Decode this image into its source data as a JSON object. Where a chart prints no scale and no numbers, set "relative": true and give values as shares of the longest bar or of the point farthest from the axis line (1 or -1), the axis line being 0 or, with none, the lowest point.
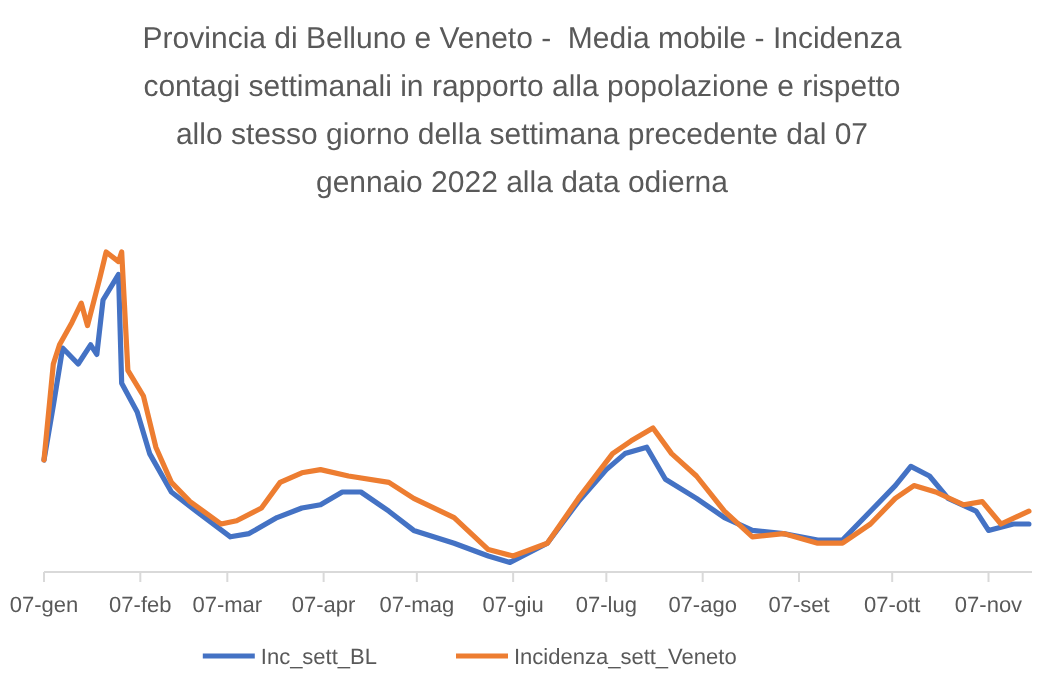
{
  "chart_data": {
    "type": "line",
    "title": "Provincia di Belluno e Veneto -  Media mobile - Incidenza contagi settimanali in rapporto alla popolazione e rispetto allo stesso giorno della settimana precedente dal 07 gennaio 2022 alla data odierna",
    "relative": true,
    "xlim": [
      "2022-01-07",
      "2022-11-21"
    ],
    "xticks": [
      {
        "value": "2022-01-07",
        "label": "07-gen"
      },
      {
        "value": "2022-02-07",
        "label": "07-feb"
      },
      {
        "value": "2022-03-07",
        "label": "07-mar"
      },
      {
        "value": "2022-04-07",
        "label": "07-apr"
      },
      {
        "value": "2022-05-07",
        "label": "07-mag"
      },
      {
        "value": "2022-06-07",
        "label": "07-giu"
      },
      {
        "value": "2022-07-07",
        "label": "07-lug"
      },
      {
        "value": "2022-08-07",
        "label": "07-ago"
      },
      {
        "value": "2022-09-07",
        "label": "07-set"
      },
      {
        "value": "2022-10-07",
        "label": "07-ott"
      },
      {
        "value": "2022-11-07",
        "label": "07-nov"
      }
    ],
    "legend": "bottom",
    "marker": "none",
    "line_style": "solid",
    "series": [
      {
        "name": "Inc_sett_BL",
        "color": "#4472c4",
        "x": [
          "2022-01-07",
          "2022-01-10",
          "2022-01-13",
          "2022-01-18",
          "2022-01-22",
          "2022-01-24",
          "2022-01-26",
          "2022-01-31",
          "2022-02-01",
          "2022-02-06",
          "2022-02-10",
          "2022-02-17",
          "2022-02-25",
          "2022-03-08",
          "2022-03-14",
          "2022-03-23",
          "2022-03-31",
          "2022-04-06",
          "2022-04-13",
          "2022-04-19",
          "2022-04-28",
          "2022-05-06",
          "2022-05-19",
          "2022-05-30",
          "2022-06-06",
          "2022-06-18",
          "2022-06-28",
          "2022-07-07",
          "2022-07-13",
          "2022-07-20",
          "2022-07-26",
          "2022-08-05",
          "2022-08-14",
          "2022-08-23",
          "2022-09-02",
          "2022-09-13",
          "2022-09-21",
          "2022-09-30",
          "2022-10-08",
          "2022-10-13",
          "2022-10-19",
          "2022-10-25",
          "2022-11-03",
          "2022-11-07",
          "2022-11-15",
          "2022-11-20"
        ],
        "values": [
          0.35,
          0.52,
          0.7,
          0.65,
          0.71,
          0.68,
          0.85,
          0.93,
          0.59,
          0.5,
          0.37,
          0.25,
          0.19,
          0.11,
          0.12,
          0.17,
          0.2,
          0.21,
          0.25,
          0.25,
          0.19,
          0.13,
          0.09,
          0.05,
          0.03,
          0.09,
          0.22,
          0.32,
          0.37,
          0.39,
          0.29,
          0.23,
          0.17,
          0.13,
          0.12,
          0.1,
          0.1,
          0.19,
          0.27,
          0.33,
          0.3,
          0.23,
          0.19,
          0.13,
          0.15,
          0.15
        ]
      },
      {
        "name": "Incidenza_sett_Veneto",
        "color": "#ed7d31",
        "x": [
          "2022-01-07",
          "2022-01-10",
          "2022-01-12",
          "2022-01-16",
          "2022-01-19",
          "2022-01-21",
          "2022-01-25",
          "2022-01-27",
          "2022-01-31",
          "2022-02-01",
          "2022-02-03",
          "2022-02-08",
          "2022-02-12",
          "2022-02-17",
          "2022-02-23",
          "2022-03-05",
          "2022-03-10",
          "2022-03-18",
          "2022-03-24",
          "2022-03-31",
          "2022-04-06",
          "2022-04-15",
          "2022-04-28",
          "2022-05-06",
          "2022-05-19",
          "2022-05-30",
          "2022-06-07",
          "2022-06-18",
          "2022-06-28",
          "2022-07-09",
          "2022-07-15",
          "2022-07-22",
          "2022-07-28",
          "2022-08-05",
          "2022-08-14",
          "2022-08-23",
          "2022-09-02",
          "2022-09-13",
          "2022-09-21",
          "2022-09-30",
          "2022-10-08",
          "2022-10-14",
          "2022-10-21",
          "2022-10-30",
          "2022-11-05",
          "2022-11-11",
          "2022-11-20"
        ],
        "values": [
          0.35,
          0.65,
          0.71,
          0.78,
          0.84,
          0.77,
          0.92,
          1.0,
          0.97,
          1.0,
          0.63,
          0.55,
          0.39,
          0.28,
          0.22,
          0.15,
          0.16,
          0.2,
          0.28,
          0.31,
          0.32,
          0.3,
          0.28,
          0.23,
          0.17,
          0.07,
          0.05,
          0.09,
          0.23,
          0.37,
          0.41,
          0.45,
          0.37,
          0.3,
          0.19,
          0.11,
          0.12,
          0.09,
          0.09,
          0.15,
          0.23,
          0.27,
          0.25,
          0.21,
          0.22,
          0.15,
          0.19
        ]
      }
    ]
  }
}
